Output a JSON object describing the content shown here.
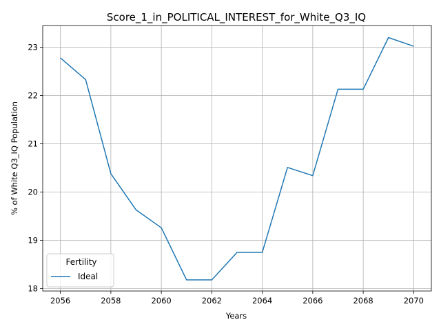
{
  "chart_data": {
    "type": "line",
    "title": "Score_1_in_POLITICAL_INTEREST_for_White_Q3_IQ",
    "xlabel": "Years",
    "ylabel": "% of White Q3_IQ Population",
    "xlim": [
      2055.3,
      2070.7
    ],
    "ylim": [
      17.95,
      23.45
    ],
    "xticks": [
      2056,
      2058,
      2060,
      2062,
      2064,
      2066,
      2068,
      2070
    ],
    "yticks": [
      18,
      19,
      20,
      21,
      22,
      23
    ],
    "grid": true,
    "legend": {
      "title": "Fertility",
      "placement": "lower-left"
    },
    "series": [
      {
        "name": "Ideal",
        "color": "#1f77b4",
        "x": [
          2056,
          2057,
          2058,
          2059,
          2060,
          2061,
          2062,
          2063,
          2064,
          2065,
          2066,
          2067,
          2068,
          2069,
          2070
        ],
        "y": [
          22.78,
          22.33,
          20.38,
          19.63,
          19.26,
          18.18,
          18.18,
          18.75,
          18.75,
          20.51,
          20.34,
          22.13,
          22.13,
          23.2,
          23.02
        ]
      }
    ]
  }
}
